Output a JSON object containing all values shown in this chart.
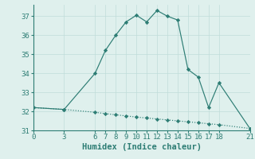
{
  "xlabel": "Humidex (Indice chaleur)",
  "ylabel": "",
  "line1_x": [
    0,
    3,
    6,
    7,
    8,
    9,
    10,
    11,
    12,
    13,
    14,
    15,
    16,
    17,
    18,
    21
  ],
  "line1_y": [
    32.2,
    32.1,
    34.0,
    35.2,
    36.0,
    36.7,
    37.05,
    36.7,
    37.3,
    37.0,
    36.8,
    34.2,
    33.8,
    32.2,
    33.5,
    31.1
  ],
  "line2_x": [
    0,
    3,
    6,
    7,
    8,
    9,
    10,
    11,
    12,
    13,
    14,
    15,
    16,
    17,
    18,
    21
  ],
  "line2_y": [
    32.2,
    32.1,
    31.95,
    31.88,
    31.82,
    31.76,
    31.7,
    31.65,
    31.6,
    31.55,
    31.5,
    31.45,
    31.4,
    31.35,
    31.3,
    31.1
  ],
  "line_color": "#2d7d74",
  "bg_color": "#dff0ed",
  "grid_color": "#c0ddd9",
  "xlim": [
    0,
    21
  ],
  "ylim": [
    31,
    37.6
  ],
  "xticks": [
    0,
    3,
    6,
    7,
    8,
    9,
    10,
    11,
    12,
    13,
    14,
    15,
    16,
    17,
    18,
    21
  ],
  "yticks": [
    31,
    32,
    33,
    34,
    35,
    36,
    37
  ],
  "tick_fontsize": 6.5,
  "xlabel_fontsize": 7.5,
  "marker": "D",
  "markersize": 2.2,
  "linewidth": 0.85
}
